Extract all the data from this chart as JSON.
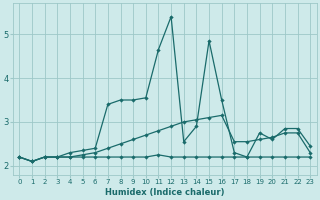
{
  "xlabel": "Humidex (Indice chaleur)",
  "bg_color": "#ceeaea",
  "grid_color": "#9dc8c8",
  "line_color": "#1a6b6b",
  "xlim": [
    -0.5,
    23.5
  ],
  "ylim": [
    1.8,
    5.7
  ],
  "xticks": [
    0,
    1,
    2,
    3,
    4,
    5,
    6,
    7,
    8,
    9,
    10,
    11,
    12,
    13,
    14,
    15,
    16,
    17,
    18,
    19,
    20,
    21,
    22,
    23
  ],
  "yticks": [
    2,
    3,
    4,
    5
  ],
  "line1_x": [
    0,
    1,
    2,
    3,
    4,
    5,
    6,
    7,
    8,
    9,
    10,
    11,
    12,
    13,
    14,
    15,
    16,
    17,
    18,
    19,
    20,
    21,
    22,
    23
  ],
  "line1_y": [
    2.2,
    2.1,
    2.2,
    2.2,
    2.2,
    2.2,
    2.2,
    2.2,
    2.2,
    2.2,
    2.2,
    2.25,
    2.2,
    2.2,
    2.2,
    2.2,
    2.2,
    2.2,
    2.2,
    2.2,
    2.2,
    2.2,
    2.2,
    2.2
  ],
  "line2_x": [
    0,
    1,
    2,
    3,
    4,
    5,
    6,
    7,
    8,
    9,
    10,
    11,
    12,
    13,
    14,
    15,
    16,
    17,
    18,
    19,
    20,
    21,
    22,
    23
  ],
  "line2_y": [
    2.2,
    2.1,
    2.2,
    2.2,
    2.2,
    2.25,
    2.3,
    2.4,
    2.5,
    2.6,
    2.7,
    2.8,
    2.9,
    3.0,
    3.05,
    3.1,
    3.15,
    2.55,
    2.55,
    2.6,
    2.65,
    2.75,
    2.75,
    2.3
  ],
  "line3_x": [
    0,
    1,
    2,
    3,
    4,
    5,
    6,
    7,
    8,
    9,
    10,
    11,
    12,
    13,
    14,
    15,
    16,
    17,
    18,
    19,
    20,
    21,
    22,
    23
  ],
  "line3_y": [
    2.2,
    2.1,
    2.2,
    2.2,
    2.3,
    2.35,
    2.4,
    3.4,
    3.5,
    3.5,
    3.55,
    4.65,
    5.4,
    2.55,
    2.9,
    4.85,
    3.5,
    2.3,
    2.2,
    2.75,
    2.6,
    2.85,
    2.85,
    2.45
  ]
}
